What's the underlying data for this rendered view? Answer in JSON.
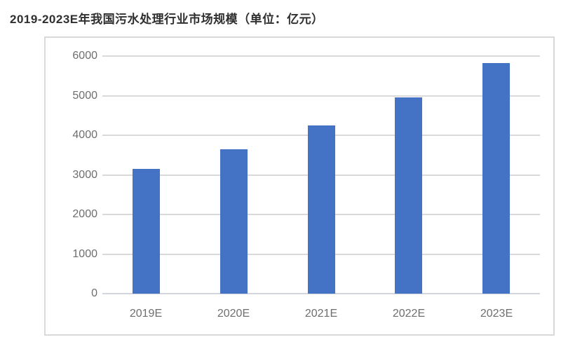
{
  "chart_data": {
    "type": "bar",
    "title": "2019-2023E年我国污水处理行业市场规模（单位：亿元）",
    "categories": [
      "2019E",
      "2020E",
      "2021E",
      "2022E",
      "2023E"
    ],
    "values": [
      3150,
      3650,
      4250,
      4950,
      5820
    ],
    "xlabel": "",
    "ylabel": "",
    "ylim": [
      0,
      6000
    ],
    "yticks": [
      0,
      1000,
      2000,
      3000,
      4000,
      5000,
      6000
    ],
    "grid": true,
    "legend": false,
    "colors": {
      "bar": "#4472c4",
      "gridline": "#d9d9d9",
      "baseline": "#d3d6dd",
      "tick_text": "#6e6e6e",
      "title_text": "#2f2f2f",
      "frame_border": "#d9d9d9",
      "background": "#ffffff"
    }
  }
}
